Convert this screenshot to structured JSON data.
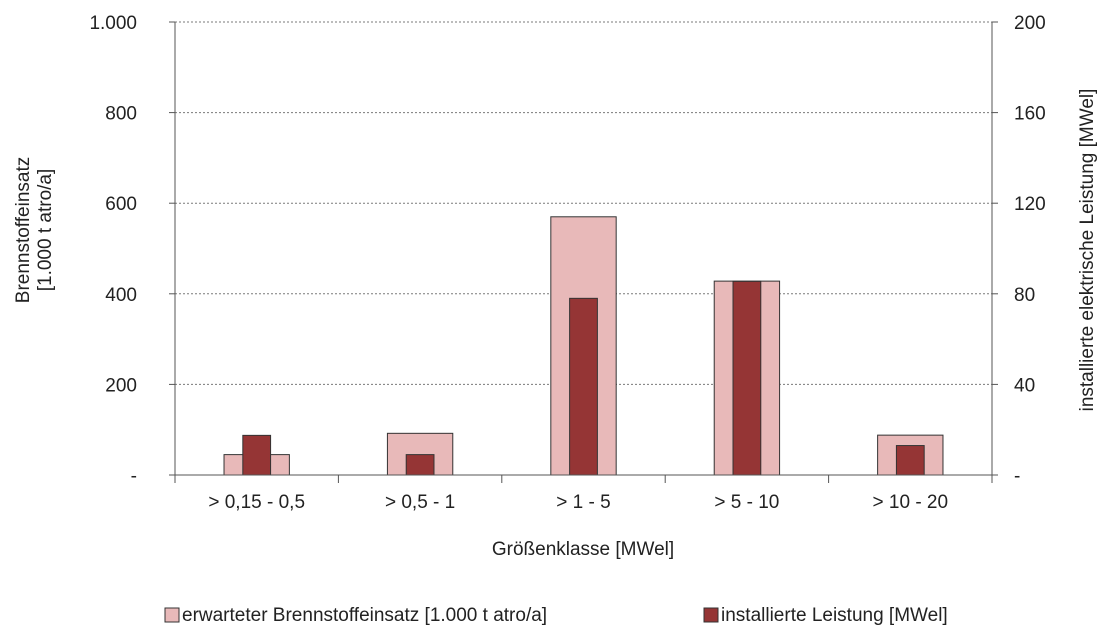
{
  "chart_data": {
    "type": "bar",
    "categories": [
      "> 0,15 - 0,5",
      "> 0,5 - 1",
      "> 1 - 5",
      "> 5 - 10",
      "> 10 - 20"
    ],
    "series": [
      {
        "name": "erwarteter Brennstoffeinsatz [1.000 t atro/a]",
        "axis": "left",
        "color": "#e8b9b9",
        "values": [
          45,
          92,
          570,
          428,
          88
        ]
      },
      {
        "name": "installierte Leistung [MWel]",
        "axis": "right",
        "color": "#953535",
        "values": [
          17.5,
          9,
          78,
          85.5,
          13
        ]
      }
    ],
    "xlabel": "Größenklasse [MWel]",
    "ylabel_lines": [
      "Brennstoffeinsatz",
      "[1.000 t atro/a]"
    ],
    "y2label": "installierte elektrische Leistung [MWel]",
    "ylim": [
      0,
      1000
    ],
    "y2lim": [
      0,
      200
    ],
    "yticks": [
      {
        "value": 0,
        "label": "-"
      },
      {
        "value": 200,
        "label": "200"
      },
      {
        "value": 400,
        "label": "400"
      },
      {
        "value": 600,
        "label": "600"
      },
      {
        "value": 800,
        "label": "800"
      },
      {
        "value": 1000,
        "label": "1.000"
      }
    ],
    "y2ticks": [
      {
        "value": 0,
        "label": "-"
      },
      {
        "value": 40,
        "label": "40"
      },
      {
        "value": 80,
        "label": "80"
      },
      {
        "value": 120,
        "label": "120"
      },
      {
        "value": 160,
        "label": "160"
      },
      {
        "value": 200,
        "label": "200"
      }
    ],
    "grid": "horizontal-dashed",
    "legend_position": "bottom"
  }
}
